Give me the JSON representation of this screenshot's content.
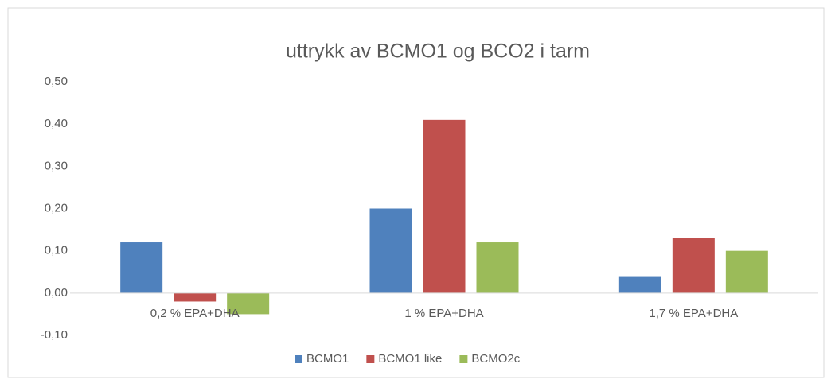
{
  "chart_data": {
    "type": "bar",
    "title": "uttrykk av BCMO1 og BCO2 i tarm",
    "categories": [
      "0,2 % EPA+DHA",
      "1 % EPA+DHA",
      "1,7 % EPA+DHA"
    ],
    "series": [
      {
        "name": "BCMO1",
        "color": "#4f81bd",
        "values": [
          0.12,
          0.2,
          0.04
        ]
      },
      {
        "name": "BCMO1 like",
        "color": "#c0504d",
        "values": [
          -0.02,
          0.41,
          0.13
        ]
      },
      {
        "name": "BCMO2c",
        "color": "#9bbb59",
        "values": [
          -0.05,
          0.12,
          0.1
        ]
      }
    ],
    "ylim": [
      -0.1,
      0.5
    ],
    "yticks": [
      {
        "value": -0.1,
        "label": "-0,10"
      },
      {
        "value": 0,
        "label": "0,00"
      },
      {
        "value": 0.1,
        "label": "0,10"
      },
      {
        "value": 0.2,
        "label": "0,20"
      },
      {
        "value": 0.3,
        "label": "0,30"
      },
      {
        "value": 0.4,
        "label": "0,40"
      },
      {
        "value": 0.5,
        "label": "0,50"
      }
    ],
    "grid": false,
    "legend": "bottom"
  }
}
